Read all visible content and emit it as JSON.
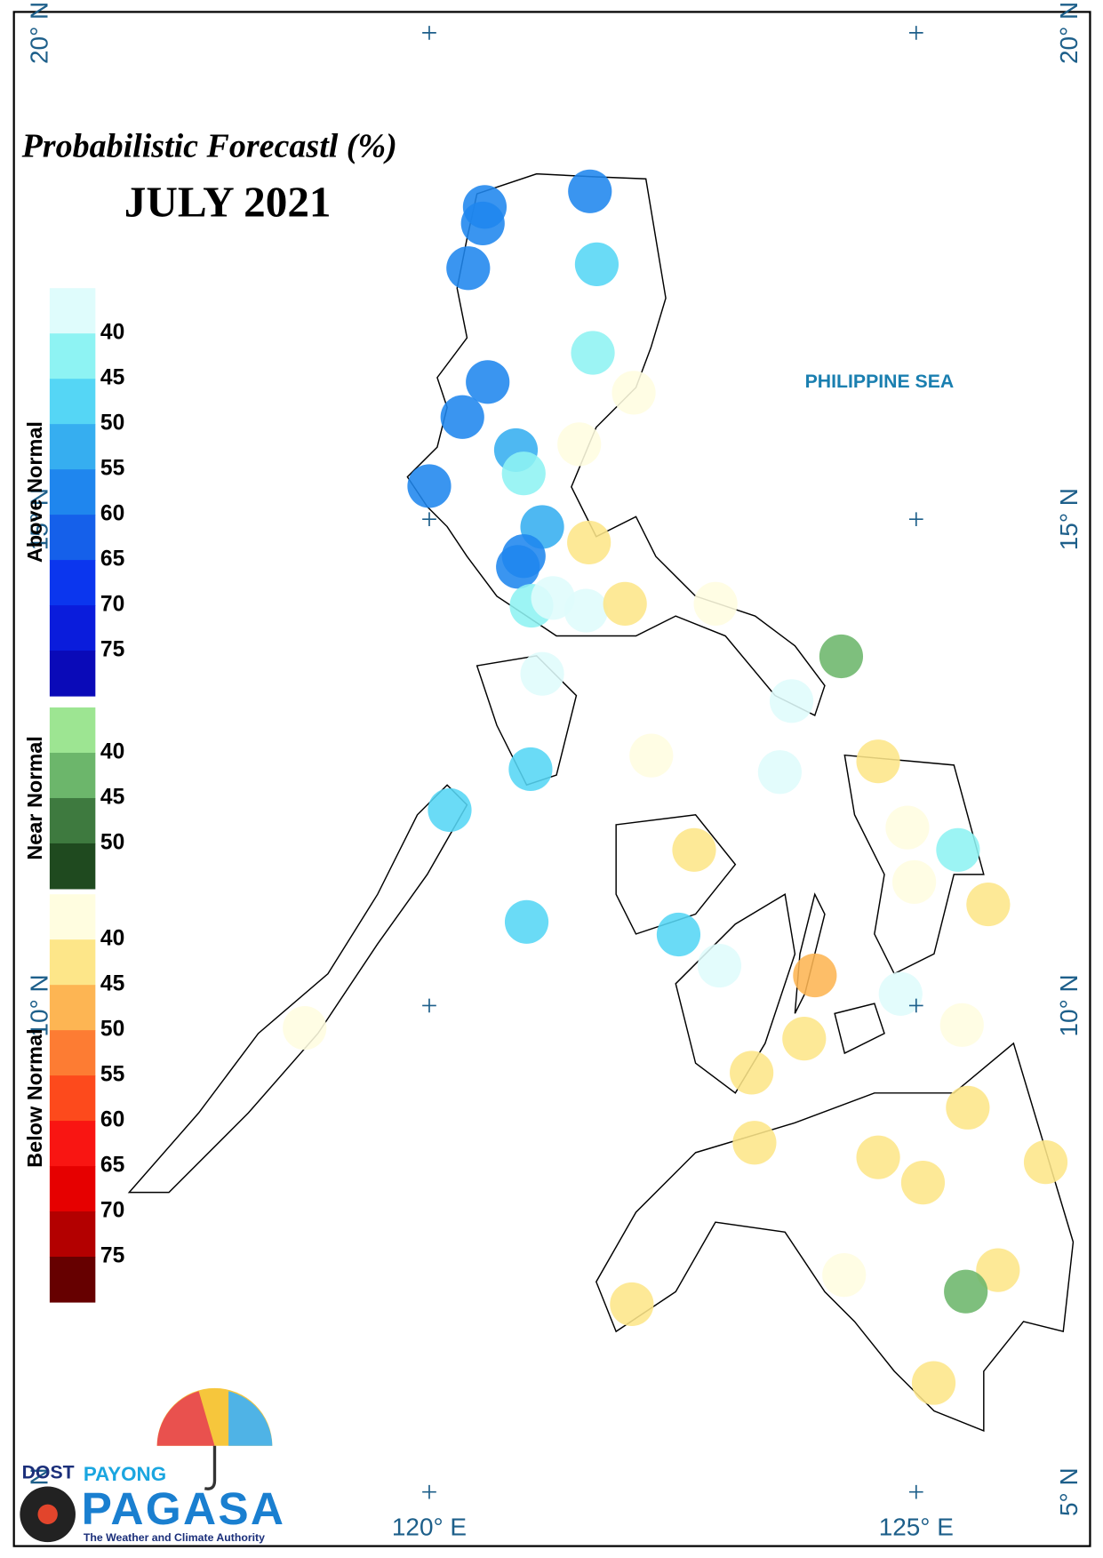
{
  "title": "Probabilistic Forecastl (%)",
  "subtitle": "JULY 2021",
  "sea_label": "PHILIPPINE SEA",
  "lonticks": [
    {
      "value": 120,
      "label": "120° E"
    },
    {
      "value": 125,
      "label": "125° E"
    }
  ],
  "latticks": [
    {
      "value": 20,
      "label": "20° N"
    },
    {
      "value": 15,
      "label": "15° N"
    },
    {
      "value": 10,
      "label": "10° N"
    },
    {
      "value": 5,
      "label": "5° N"
    }
  ],
  "legend": {
    "groups": [
      {
        "name": "Above Normal",
        "ticks": [
          40,
          45,
          50,
          55,
          60,
          65,
          70,
          75
        ],
        "colors": [
          "#dffcfc",
          "#8ef3f3",
          "#55d6f5",
          "#36aef0",
          "#1f86ee",
          "#1560ea",
          "#0b36ee",
          "#0a1cdc",
          "#0a0ab8"
        ]
      },
      {
        "name": "Near Normal",
        "ticks": [
          40,
          45,
          50
        ],
        "colors": [
          "#9de592",
          "#6cb66b",
          "#3e7a3f",
          "#1f4a1f"
        ]
      },
      {
        "name": "Below Normal",
        "ticks": [
          40,
          45,
          50,
          55,
          60,
          65,
          70,
          75
        ],
        "colors": [
          "#fffde0",
          "#fde689",
          "#fdb553",
          "#fd7c33",
          "#fd4a1c",
          "#f91512",
          "#e60000",
          "#b30000",
          "#660000"
        ]
      }
    ]
  },
  "stations": [
    {
      "lon": 120.57,
      "lat": 18.21,
      "category": "Above Normal",
      "value": 57
    },
    {
      "lon": 120.55,
      "lat": 18.04,
      "category": "Above Normal",
      "value": 57
    },
    {
      "lon": 120.4,
      "lat": 17.58,
      "category": "Above Normal",
      "value": 57
    },
    {
      "lon": 121.65,
      "lat": 18.37,
      "category": "Above Normal",
      "value": 57
    },
    {
      "lon": 121.72,
      "lat": 17.62,
      "category": "Above Normal",
      "value": 48
    },
    {
      "lon": 121.68,
      "lat": 16.71,
      "category": "Above Normal",
      "value": 43
    },
    {
      "lon": 122.1,
      "lat": 16.3,
      "category": "Below Normal",
      "value": 37
    },
    {
      "lon": 120.6,
      "lat": 16.41,
      "category": "Above Normal",
      "value": 57
    },
    {
      "lon": 120.34,
      "lat": 16.05,
      "category": "Above Normal",
      "value": 57
    },
    {
      "lon": 120.89,
      "lat": 15.71,
      "category": "Above Normal",
      "value": 52
    },
    {
      "lon": 120.97,
      "lat": 15.47,
      "category": "Above Normal",
      "value": 43
    },
    {
      "lon": 121.54,
      "lat": 15.77,
      "category": "Below Normal",
      "value": 37
    },
    {
      "lon": 120.0,
      "lat": 15.34,
      "category": "Above Normal",
      "value": 57
    },
    {
      "lon": 121.16,
      "lat": 14.92,
      "category": "Above Normal",
      "value": 52
    },
    {
      "lon": 120.97,
      "lat": 14.62,
      "category": "Above Normal",
      "value": 57
    },
    {
      "lon": 120.91,
      "lat": 14.51,
      "category": "Above Normal",
      "value": 57
    },
    {
      "lon": 121.64,
      "lat": 14.76,
      "category": "Below Normal",
      "value": 42
    },
    {
      "lon": 121.05,
      "lat": 14.11,
      "category": "Above Normal",
      "value": 43
    },
    {
      "lon": 121.27,
      "lat": 14.19,
      "category": "Above Normal",
      "value": 37
    },
    {
      "lon": 121.61,
      "lat": 14.06,
      "category": "Above Normal",
      "value": 37
    },
    {
      "lon": 122.01,
      "lat": 14.13,
      "category": "Below Normal",
      "value": 42
    },
    {
      "lon": 122.94,
      "lat": 14.13,
      "category": "Below Normal",
      "value": 37
    },
    {
      "lon": 124.23,
      "lat": 13.59,
      "category": "Near Normal",
      "value": 42
    },
    {
      "lon": 121.16,
      "lat": 13.41,
      "category": "Above Normal",
      "value": 37
    },
    {
      "lon": 123.72,
      "lat": 13.13,
      "category": "Above Normal",
      "value": 37
    },
    {
      "lon": 122.28,
      "lat": 12.57,
      "category": "Below Normal",
      "value": 37
    },
    {
      "lon": 124.61,
      "lat": 12.51,
      "category": "Below Normal",
      "value": 42
    },
    {
      "lon": 121.04,
      "lat": 12.43,
      "category": "Above Normal",
      "value": 48
    },
    {
      "lon": 123.6,
      "lat": 12.4,
      "category": "Above Normal",
      "value": 37
    },
    {
      "lon": 120.21,
      "lat": 12.01,
      "category": "Above Normal",
      "value": 48
    },
    {
      "lon": 124.91,
      "lat": 11.83,
      "category": "Below Normal",
      "value": 37
    },
    {
      "lon": 125.43,
      "lat": 11.6,
      "category": "Above Normal",
      "value": 43
    },
    {
      "lon": 122.72,
      "lat": 11.6,
      "category": "Below Normal",
      "value": 42
    },
    {
      "lon": 124.98,
      "lat": 11.27,
      "category": "Below Normal",
      "value": 37
    },
    {
      "lon": 125.74,
      "lat": 11.04,
      "category": "Below Normal",
      "value": 42
    },
    {
      "lon": 121.0,
      "lat": 10.86,
      "category": "Above Normal",
      "value": 48
    },
    {
      "lon": 122.56,
      "lat": 10.73,
      "category": "Above Normal",
      "value": 48
    },
    {
      "lon": 122.98,
      "lat": 10.41,
      "category": "Above Normal",
      "value": 37
    },
    {
      "lon": 123.96,
      "lat": 10.31,
      "category": "Below Normal",
      "value": 48
    },
    {
      "lon": 124.84,
      "lat": 10.12,
      "category": "Above Normal",
      "value": 37
    },
    {
      "lon": 125.47,
      "lat": 9.8,
      "category": "Below Normal",
      "value": 37
    },
    {
      "lon": 118.72,
      "lat": 9.77,
      "category": "Below Normal",
      "value": 37
    },
    {
      "lon": 123.85,
      "lat": 9.66,
      "category": "Below Normal",
      "value": 42
    },
    {
      "lon": 123.31,
      "lat": 9.31,
      "category": "Below Normal",
      "value": 42
    },
    {
      "lon": 125.53,
      "lat": 8.95,
      "category": "Below Normal",
      "value": 42
    },
    {
      "lon": 123.34,
      "lat": 8.59,
      "category": "Below Normal",
      "value": 42
    },
    {
      "lon": 124.61,
      "lat": 8.44,
      "category": "Below Normal",
      "value": 42
    },
    {
      "lon": 125.07,
      "lat": 8.18,
      "category": "Below Normal",
      "value": 42
    },
    {
      "lon": 126.33,
      "lat": 8.39,
      "category": "Below Normal",
      "value": 42
    },
    {
      "lon": 124.26,
      "lat": 7.23,
      "category": "Below Normal",
      "value": 37
    },
    {
      "lon": 125.84,
      "lat": 7.28,
      "category": "Below Normal",
      "value": 42
    },
    {
      "lon": 125.51,
      "lat": 7.06,
      "category": "Near Normal",
      "value": 42
    },
    {
      "lon": 122.08,
      "lat": 6.93,
      "category": "Below Normal",
      "value": 42
    },
    {
      "lon": 125.18,
      "lat": 6.12,
      "category": "Below Normal",
      "value": 42
    }
  ],
  "logo": {
    "agency": "DOST",
    "brand_top": "PAYONG",
    "brand": "PAGASA",
    "tagline": "The Weather and Climate Authority"
  }
}
